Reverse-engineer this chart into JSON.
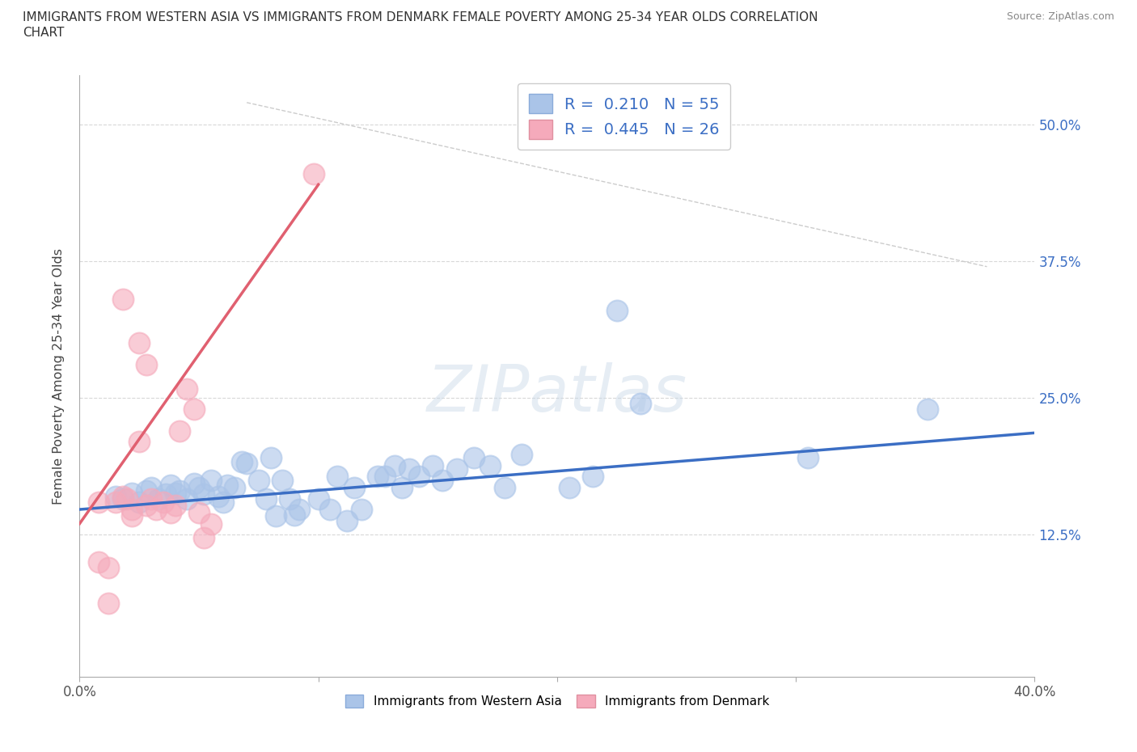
{
  "title_line1": "IMMIGRANTS FROM WESTERN ASIA VS IMMIGRANTS FROM DENMARK FEMALE POVERTY AMONG 25-34 YEAR OLDS CORRELATION",
  "title_line2": "CHART",
  "source": "Source: ZipAtlas.com",
  "ylabel": "Female Poverty Among 25-34 Year Olds",
  "xlim": [
    0.0,
    0.4
  ],
  "ylim": [
    -0.005,
    0.545
  ],
  "xtick_positions": [
    0.0,
    0.1,
    0.2,
    0.3,
    0.4
  ],
  "xticklabels": [
    "0.0%",
    "",
    "",
    "",
    "40.0%"
  ],
  "ytick_positions": [
    0.125,
    0.25,
    0.375,
    0.5
  ],
  "ytick_labels": [
    "12.5%",
    "25.0%",
    "37.5%",
    "50.0%"
  ],
  "blue_color": "#aac4e8",
  "pink_color": "#f5aabb",
  "blue_line_color": "#3b6ec4",
  "pink_line_color": "#e06070",
  "diag_line_color": "#cccccc",
  "R_blue": 0.21,
  "N_blue": 55,
  "R_pink": 0.445,
  "N_pink": 26,
  "blue_scatter": [
    [
      0.015,
      0.16
    ],
    [
      0.018,
      0.158
    ],
    [
      0.022,
      0.163
    ],
    [
      0.025,
      0.155
    ],
    [
      0.028,
      0.165
    ],
    [
      0.03,
      0.168
    ],
    [
      0.033,
      0.158
    ],
    [
      0.036,
      0.162
    ],
    [
      0.038,
      0.17
    ],
    [
      0.04,
      0.163
    ],
    [
      0.042,
      0.165
    ],
    [
      0.045,
      0.158
    ],
    [
      0.048,
      0.172
    ],
    [
      0.05,
      0.168
    ],
    [
      0.052,
      0.162
    ],
    [
      0.055,
      0.175
    ],
    [
      0.058,
      0.16
    ],
    [
      0.06,
      0.155
    ],
    [
      0.062,
      0.17
    ],
    [
      0.065,
      0.168
    ],
    [
      0.068,
      0.192
    ],
    [
      0.07,
      0.19
    ],
    [
      0.075,
      0.175
    ],
    [
      0.078,
      0.158
    ],
    [
      0.08,
      0.195
    ],
    [
      0.082,
      0.142
    ],
    [
      0.085,
      0.175
    ],
    [
      0.088,
      0.158
    ],
    [
      0.09,
      0.143
    ],
    [
      0.092,
      0.148
    ],
    [
      0.1,
      0.158
    ],
    [
      0.105,
      0.148
    ],
    [
      0.108,
      0.178
    ],
    [
      0.112,
      0.138
    ],
    [
      0.115,
      0.168
    ],
    [
      0.118,
      0.148
    ],
    [
      0.125,
      0.178
    ],
    [
      0.128,
      0.178
    ],
    [
      0.132,
      0.188
    ],
    [
      0.135,
      0.168
    ],
    [
      0.138,
      0.185
    ],
    [
      0.142,
      0.178
    ],
    [
      0.148,
      0.188
    ],
    [
      0.152,
      0.175
    ],
    [
      0.158,
      0.185
    ],
    [
      0.165,
      0.195
    ],
    [
      0.172,
      0.188
    ],
    [
      0.178,
      0.168
    ],
    [
      0.185,
      0.198
    ],
    [
      0.205,
      0.168
    ],
    [
      0.215,
      0.178
    ],
    [
      0.225,
      0.33
    ],
    [
      0.235,
      0.245
    ],
    [
      0.305,
      0.195
    ],
    [
      0.355,
      0.24
    ]
  ],
  "pink_scatter": [
    [
      0.008,
      0.155
    ],
    [
      0.012,
      0.062
    ],
    [
      0.015,
      0.155
    ],
    [
      0.018,
      0.16
    ],
    [
      0.02,
      0.158
    ],
    [
      0.022,
      0.148
    ],
    [
      0.025,
      0.21
    ],
    [
      0.028,
      0.152
    ],
    [
      0.03,
      0.158
    ],
    [
      0.032,
      0.148
    ],
    [
      0.035,
      0.155
    ],
    [
      0.038,
      0.145
    ],
    [
      0.04,
      0.152
    ],
    [
      0.042,
      0.22
    ],
    [
      0.045,
      0.258
    ],
    [
      0.048,
      0.24
    ],
    [
      0.05,
      0.145
    ],
    [
      0.055,
      0.135
    ],
    [
      0.008,
      0.1
    ],
    [
      0.012,
      0.095
    ],
    [
      0.022,
      0.142
    ],
    [
      0.052,
      0.122
    ],
    [
      0.098,
      0.455
    ],
    [
      0.018,
      0.34
    ],
    [
      0.025,
      0.3
    ],
    [
      0.028,
      0.28
    ]
  ],
  "watermark": "ZIPatlas",
  "background_color": "#ffffff",
  "grid_color": "#d8d8d8",
  "legend_label_blue": "Immigrants from Western Asia",
  "legend_label_pink": "Immigrants from Denmark",
  "blue_line_x": [
    0.0,
    0.4
  ],
  "blue_line_y": [
    0.148,
    0.218
  ],
  "pink_line_x": [
    0.0,
    0.1
  ],
  "pink_line_y": [
    0.135,
    0.445
  ]
}
